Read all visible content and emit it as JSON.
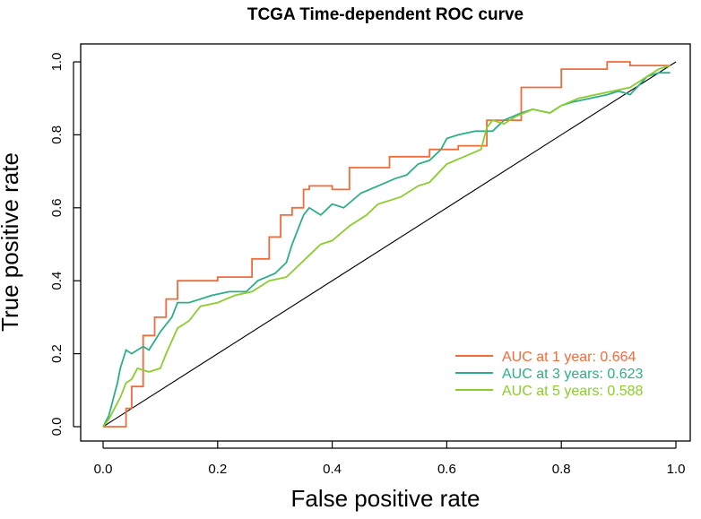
{
  "chart_data": {
    "type": "line",
    "title": "TCGA Time-dependent ROC curve",
    "xlabel": "False positive rate",
    "ylabel": "True positive rate",
    "xlim": [
      0,
      1
    ],
    "ylim": [
      0,
      1
    ],
    "xticks": [
      "0.0",
      "0.2",
      "0.4",
      "0.6",
      "0.8",
      "1.0"
    ],
    "yticks": [
      "0.0",
      "0.2",
      "0.4",
      "0.6",
      "0.8",
      "1.0"
    ],
    "grid": false,
    "legend_position": "bottom-right",
    "reference_line": {
      "x": [
        0,
        1
      ],
      "y": [
        0,
        1
      ],
      "color": "#000000"
    },
    "series": [
      {
        "name": "AUC at 1 year: 0.664",
        "color": "#F26B3A",
        "x": [
          0,
          0.04,
          0.04,
          0.05,
          0.05,
          0.07,
          0.07,
          0.09,
          0.09,
          0.11,
          0.11,
          0.13,
          0.13,
          0.2,
          0.2,
          0.26,
          0.26,
          0.29,
          0.29,
          0.31,
          0.31,
          0.33,
          0.33,
          0.35,
          0.35,
          0.36,
          0.36,
          0.4,
          0.4,
          0.43,
          0.43,
          0.5,
          0.5,
          0.57,
          0.57,
          0.62,
          0.62,
          0.67,
          0.67,
          0.73,
          0.73,
          0.8,
          0.8,
          0.88,
          0.88,
          0.92,
          0.92,
          0.99
        ],
        "y": [
          0,
          0,
          0.05,
          0.05,
          0.11,
          0.11,
          0.25,
          0.25,
          0.3,
          0.3,
          0.35,
          0.35,
          0.4,
          0.4,
          0.41,
          0.41,
          0.46,
          0.46,
          0.52,
          0.52,
          0.58,
          0.58,
          0.6,
          0.6,
          0.65,
          0.65,
          0.66,
          0.66,
          0.65,
          0.65,
          0.71,
          0.71,
          0.74,
          0.74,
          0.76,
          0.76,
          0.77,
          0.77,
          0.84,
          0.84,
          0.93,
          0.93,
          0.98,
          0.98,
          1.0,
          1.0,
          0.99,
          0.99
        ]
      },
      {
        "name": "AUC at 3 years: 0.623",
        "color": "#2EAD8A",
        "x": [
          0,
          0.01,
          0.015,
          0.02,
          0.025,
          0.03,
          0.04,
          0.05,
          0.06,
          0.07,
          0.08,
          0.1,
          0.11,
          0.12,
          0.13,
          0.15,
          0.17,
          0.19,
          0.22,
          0.25,
          0.27,
          0.3,
          0.32,
          0.33,
          0.35,
          0.36,
          0.38,
          0.4,
          0.42,
          0.45,
          0.48,
          0.51,
          0.53,
          0.55,
          0.57,
          0.59,
          0.6,
          0.62,
          0.65,
          0.68,
          0.7,
          0.73,
          0.75,
          0.78,
          0.8,
          0.82,
          0.85,
          0.88,
          0.9,
          0.92,
          0.95,
          0.97,
          0.99
        ],
        "y": [
          0,
          0.03,
          0.06,
          0.09,
          0.12,
          0.16,
          0.21,
          0.2,
          0.21,
          0.22,
          0.21,
          0.26,
          0.28,
          0.3,
          0.34,
          0.34,
          0.35,
          0.36,
          0.37,
          0.37,
          0.4,
          0.42,
          0.45,
          0.5,
          0.58,
          0.6,
          0.58,
          0.61,
          0.6,
          0.64,
          0.66,
          0.68,
          0.69,
          0.72,
          0.73,
          0.76,
          0.79,
          0.8,
          0.81,
          0.81,
          0.84,
          0.86,
          0.87,
          0.86,
          0.88,
          0.89,
          0.9,
          0.91,
          0.92,
          0.91,
          0.96,
          0.97,
          0.97
        ]
      },
      {
        "name": "AUC at 5 years: 0.588",
        "color": "#8BCC2E",
        "x": [
          0,
          0.01,
          0.02,
          0.03,
          0.04,
          0.05,
          0.06,
          0.08,
          0.1,
          0.11,
          0.13,
          0.15,
          0.17,
          0.2,
          0.23,
          0.26,
          0.29,
          0.32,
          0.34,
          0.36,
          0.38,
          0.4,
          0.43,
          0.46,
          0.48,
          0.5,
          0.52,
          0.55,
          0.57,
          0.6,
          0.63,
          0.66,
          0.67,
          0.68,
          0.7,
          0.72,
          0.75,
          0.78,
          0.8,
          0.83,
          0.86,
          0.89,
          0.92,
          0.95,
          0.97,
          0.99
        ],
        "y": [
          0,
          0.02,
          0.05,
          0.08,
          0.12,
          0.13,
          0.16,
          0.15,
          0.16,
          0.2,
          0.27,
          0.29,
          0.33,
          0.34,
          0.36,
          0.37,
          0.4,
          0.41,
          0.44,
          0.47,
          0.5,
          0.51,
          0.55,
          0.58,
          0.61,
          0.62,
          0.63,
          0.66,
          0.67,
          0.72,
          0.74,
          0.76,
          0.82,
          0.84,
          0.83,
          0.85,
          0.87,
          0.86,
          0.88,
          0.9,
          0.91,
          0.92,
          0.93,
          0.96,
          0.98,
          0.99
        ]
      }
    ]
  }
}
